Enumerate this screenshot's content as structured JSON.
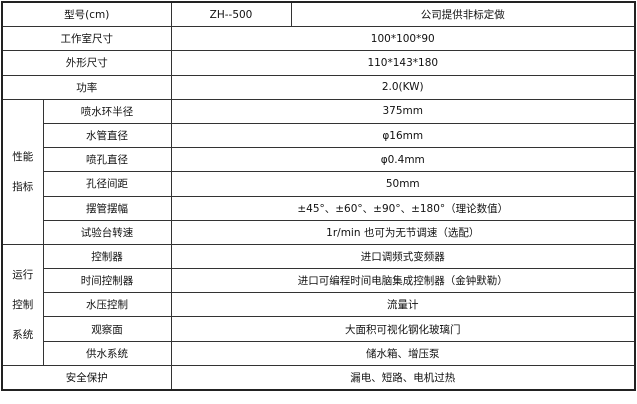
{
  "header": {
    "model_label": "型号(cm)",
    "model_value": "ZH--500",
    "custom_note": "公司提供非标定做"
  },
  "rows_top": [
    {
      "label": "工作室尺寸",
      "value": "100*100*90"
    },
    {
      "label": "外形尺寸",
      "value": "110*143*180"
    },
    {
      "label": "功率",
      "value": "2.0(KW)"
    }
  ],
  "performance": {
    "group_label_1": "性能",
    "group_label_2": "指标",
    "items": [
      {
        "label": "喷水环半径",
        "value": "375mm"
      },
      {
        "label": "水管直径",
        "value": "φ16mm"
      },
      {
        "label": "喷孔直径",
        "value": "φ0.4mm"
      },
      {
        "label": "孔径间距",
        "value": "50mm"
      },
      {
        "label": "摆管摆幅",
        "value": "±45°、±60°、±90°、±180°（理论数值）"
      },
      {
        "label": "试验台转速",
        "value": "1r/min 也可为无节调速（选配）"
      }
    ]
  },
  "control": {
    "group_label_1": "运行",
    "group_label_2": "控制",
    "group_label_3": "系统",
    "items": [
      {
        "label": "控制器",
        "value": "进口调频式变频器"
      },
      {
        "label": "时间控制器",
        "value": "进口可编程时间电脑集成控制器（金钟默勒）"
      },
      {
        "label": "水压控制",
        "value": "流量计"
      },
      {
        "label": "观察面",
        "value": "大面积可视化钢化玻璃门"
      },
      {
        "label": "供水系统",
        "value": "储水箱、增压泵"
      }
    ]
  },
  "safety": {
    "label": "安全保护",
    "value": "漏电、短路、电机过热"
  }
}
